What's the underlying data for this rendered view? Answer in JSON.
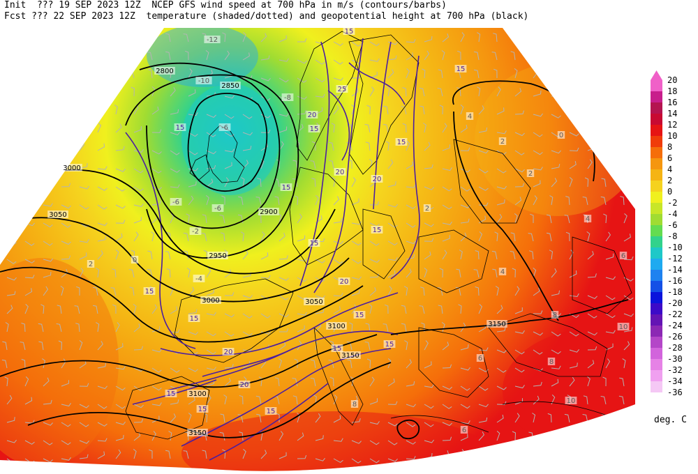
{
  "header": {
    "line1": "Init  ??? 19 SEP 2023 12Z  NCEP GFS wind speed at 700 hPa in m/s (contours/barbs)",
    "line2": "Fcst ??? 22 SEP 2023 12Z  temperature (shaded/dotted) and geopotential height at 700 hPa (black)"
  },
  "colorbar": {
    "units": "deg. C",
    "ticks": [
      "20",
      "18",
      "16",
      "14",
      "12",
      "10",
      "8",
      "6",
      "4",
      "2",
      "0",
      "-2",
      "-4",
      "-6",
      "-8",
      "-10",
      "-12",
      "-14",
      "-16",
      "-18",
      "-20",
      "-22",
      "-24",
      "-26",
      "-28",
      "-30",
      "-32",
      "-34",
      "-36"
    ],
    "colors": [
      "#f060c8",
      "#c81e8c",
      "#b41450",
      "#c80a32",
      "#e61414",
      "#f03c0a",
      "#f56e0a",
      "#f5960f",
      "#f5b414",
      "#f5d21e",
      "#f0f01e",
      "#c8e628",
      "#a0dc32",
      "#64dc50",
      "#32d28c",
      "#1ec8c8",
      "#1eaaf0",
      "#1e82f0",
      "#1450e6",
      "#0a14dc",
      "#3c0ac8",
      "#6414b4",
      "#8c28b4",
      "#b446c8",
      "#d264dc",
      "#e682e6",
      "#f0a0f0",
      "#f5c8f5"
    ]
  },
  "height_labels": [
    "2800",
    "2850",
    "2900",
    "2950",
    "3000",
    "3050",
    "3000",
    "3050",
    "3100",
    "3150",
    "3150",
    "3150",
    "3100"
  ],
  "wind_labels": [
    "15",
    "15",
    "20",
    "25",
    "15",
    "20",
    "15",
    "20",
    "15",
    "15",
    "20",
    "15",
    "15",
    "20",
    "20",
    "15",
    "15",
    "15",
    "15",
    "15",
    "15",
    "15",
    "15"
  ],
  "temp_labels": [
    "-12",
    "-10",
    "-6",
    "-8",
    "-6",
    "-6",
    "-4",
    "2",
    "4",
    "2",
    "0",
    "2",
    "4",
    "6",
    "8",
    "10",
    "10",
    "8",
    "6",
    "6",
    "8",
    "-2",
    "0",
    "2",
    "4"
  ],
  "colors": {
    "height_contour": "#000000",
    "wind_contour": "#4b1ea0",
    "barb": "#b4b4b4",
    "border": "#000000"
  }
}
